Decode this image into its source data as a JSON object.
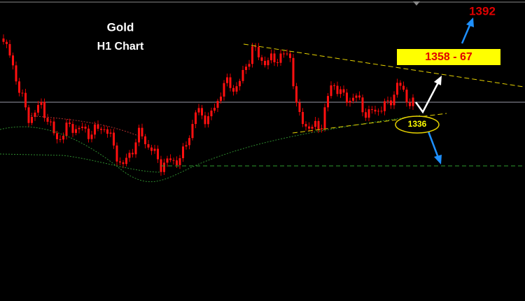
{
  "title": "Gold",
  "subtitle": "H1 Chart",
  "annotations": {
    "target": "1392",
    "resistance": "1358 - 67",
    "support": "1336"
  }
}
